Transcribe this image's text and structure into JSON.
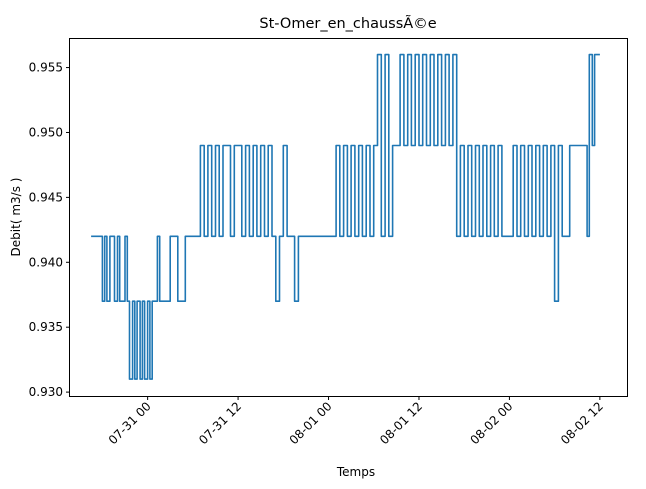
{
  "chart_data": {
    "type": "line",
    "title": "St-Omer_en_chaussÃ©e",
    "xlabel": "Temps",
    "ylabel": "Debit( m3/s )",
    "x_ticks": [
      "07-31 00",
      "07-31 12",
      "08-01 00",
      "08-01 12",
      "08-02 00",
      "08-02 12"
    ],
    "x_tick_hours": [
      24,
      36,
      48,
      60,
      72,
      84
    ],
    "y_ticks": [
      0.93,
      0.935,
      0.94,
      0.945,
      0.95,
      0.955
    ],
    "x_unit": "hours from 07-30 00",
    "xlim": [
      13.7,
      87.6
    ],
    "ylim": [
      0.9297,
      0.9572
    ],
    "grid": false,
    "legend": "none",
    "series": [
      {
        "name": "",
        "color": "#1f77b4",
        "x": [
          16.5,
          17.5,
          18.0,
          18.3,
          18.6,
          19.0,
          19.3,
          19.6,
          20.0,
          20.3,
          20.6,
          21.0,
          21.3,
          21.6,
          22.0,
          22.3,
          22.6,
          23.0,
          23.3,
          23.6,
          24.0,
          24.3,
          24.6,
          25.0,
          25.3,
          25.6,
          26.0,
          27.0,
          28.0,
          29.0,
          30.0,
          30.5,
          31.0,
          31.5,
          32.0,
          32.5,
          33.0,
          33.5,
          34.0,
          35.0,
          35.5,
          36.0,
          36.5,
          37.0,
          37.5,
          38.0,
          38.5,
          39.0,
          39.5,
          40.0,
          40.5,
          41.0,
          41.5,
          42.0,
          42.5,
          43.0,
          43.5,
          44.0,
          44.5,
          45.0,
          45.5,
          46.0,
          46.5,
          47.0,
          48.0,
          49.0,
          49.5,
          50.0,
          50.5,
          51.0,
          51.5,
          52.0,
          52.5,
          53.0,
          53.5,
          54.0,
          54.5,
          55.0,
          55.5,
          56.0,
          56.5,
          57.0,
          57.5,
          58.0,
          58.5,
          59.0,
          59.5,
          60.0,
          60.5,
          61.0,
          61.5,
          62.0,
          62.5,
          63.0,
          63.5,
          64.0,
          64.5,
          65.0,
          65.5,
          66.0,
          66.5,
          67.0,
          67.5,
          68.0,
          68.5,
          69.0,
          69.5,
          70.0,
          70.5,
          71.0,
          71.5,
          72.0,
          72.5,
          73.0,
          73.5,
          74.0,
          74.5,
          75.0,
          75.5,
          76.0,
          76.5,
          77.0,
          77.5,
          78.0,
          78.5,
          79.0,
          80.0,
          81.0,
          82.0,
          82.3,
          82.6,
          83.0,
          83.3,
          83.6,
          84.0
        ],
        "values": [
          0.942,
          0.942,
          0.937,
          0.942,
          0.937,
          0.942,
          0.942,
          0.937,
          0.942,
          0.937,
          0.937,
          0.942,
          0.937,
          0.931,
          0.937,
          0.931,
          0.937,
          0.931,
          0.937,
          0.931,
          0.937,
          0.931,
          0.937,
          0.937,
          0.942,
          0.937,
          0.937,
          0.942,
          0.937,
          0.942,
          0.942,
          0.942,
          0.949,
          0.942,
          0.949,
          0.942,
          0.949,
          0.942,
          0.949,
          0.942,
          0.949,
          0.949,
          0.942,
          0.949,
          0.942,
          0.949,
          0.942,
          0.949,
          0.942,
          0.949,
          0.942,
          0.937,
          0.942,
          0.949,
          0.942,
          0.942,
          0.937,
          0.942,
          0.942,
          0.942,
          0.942,
          0.942,
          0.942,
          0.942,
          0.942,
          0.949,
          0.942,
          0.949,
          0.942,
          0.949,
          0.942,
          0.949,
          0.942,
          0.949,
          0.942,
          0.949,
          0.956,
          0.942,
          0.956,
          0.942,
          0.949,
          0.949,
          0.956,
          0.949,
          0.956,
          0.949,
          0.956,
          0.949,
          0.956,
          0.949,
          0.956,
          0.949,
          0.956,
          0.949,
          0.956,
          0.949,
          0.956,
          0.942,
          0.949,
          0.942,
          0.949,
          0.942,
          0.949,
          0.942,
          0.949,
          0.942,
          0.949,
          0.942,
          0.949,
          0.942,
          0.942,
          0.942,
          0.949,
          0.942,
          0.949,
          0.942,
          0.949,
          0.942,
          0.949,
          0.942,
          0.949,
          0.942,
          0.949,
          0.937,
          0.949,
          0.942,
          0.949,
          0.949,
          0.949,
          0.942,
          0.956,
          0.949,
          0.956,
          0.956,
          0.956
        ]
      }
    ]
  }
}
